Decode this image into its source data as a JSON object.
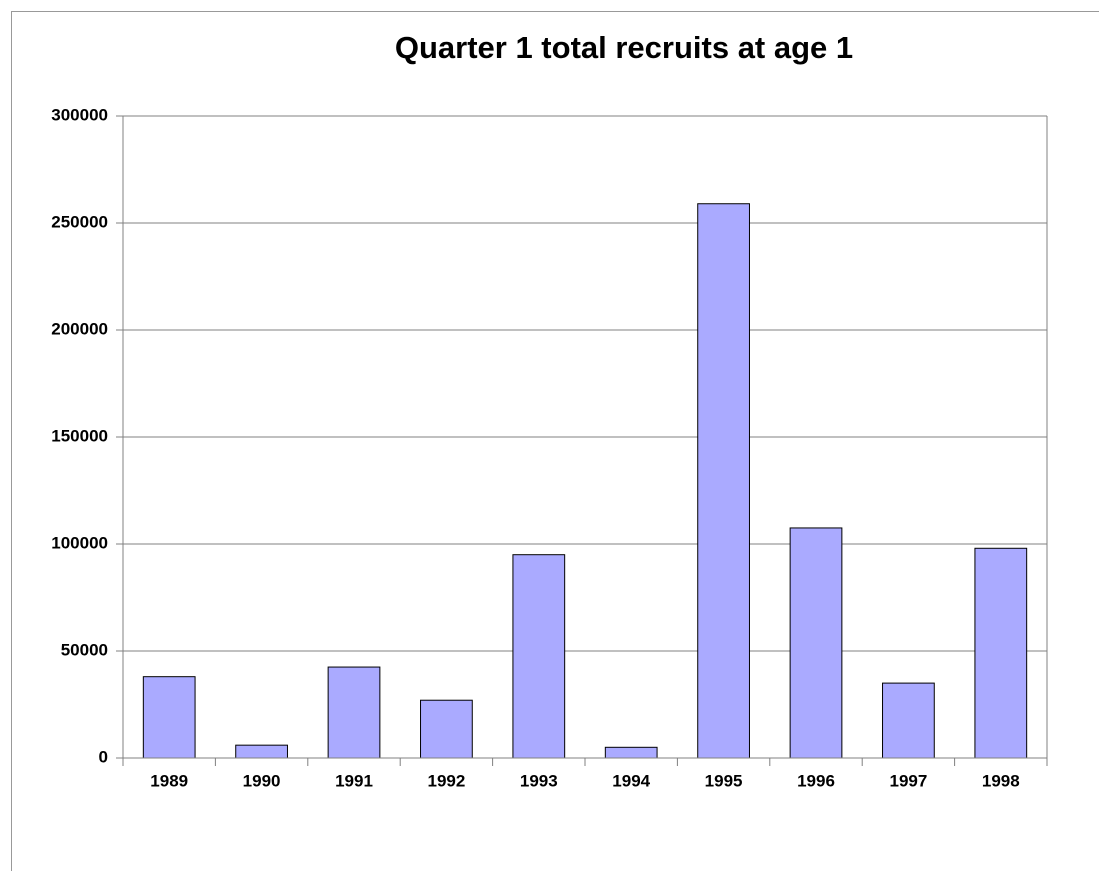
{
  "chart_data": {
    "type": "bar",
    "title": "Quarter 1 total recruits at age 1",
    "categories": [
      "1989",
      "1990",
      "1991",
      "1992",
      "1993",
      "1994",
      "1995",
      "1996",
      "1997",
      "1998"
    ],
    "values": [
      38000,
      6000,
      42500,
      27000,
      95000,
      5000,
      259000,
      107500,
      35000,
      98000
    ],
    "color": "#aaaaff",
    "ylim": [
      0,
      300000
    ],
    "yticks": [
      0,
      50000,
      100000,
      150000,
      200000,
      250000,
      300000
    ],
    "grid": true
  }
}
